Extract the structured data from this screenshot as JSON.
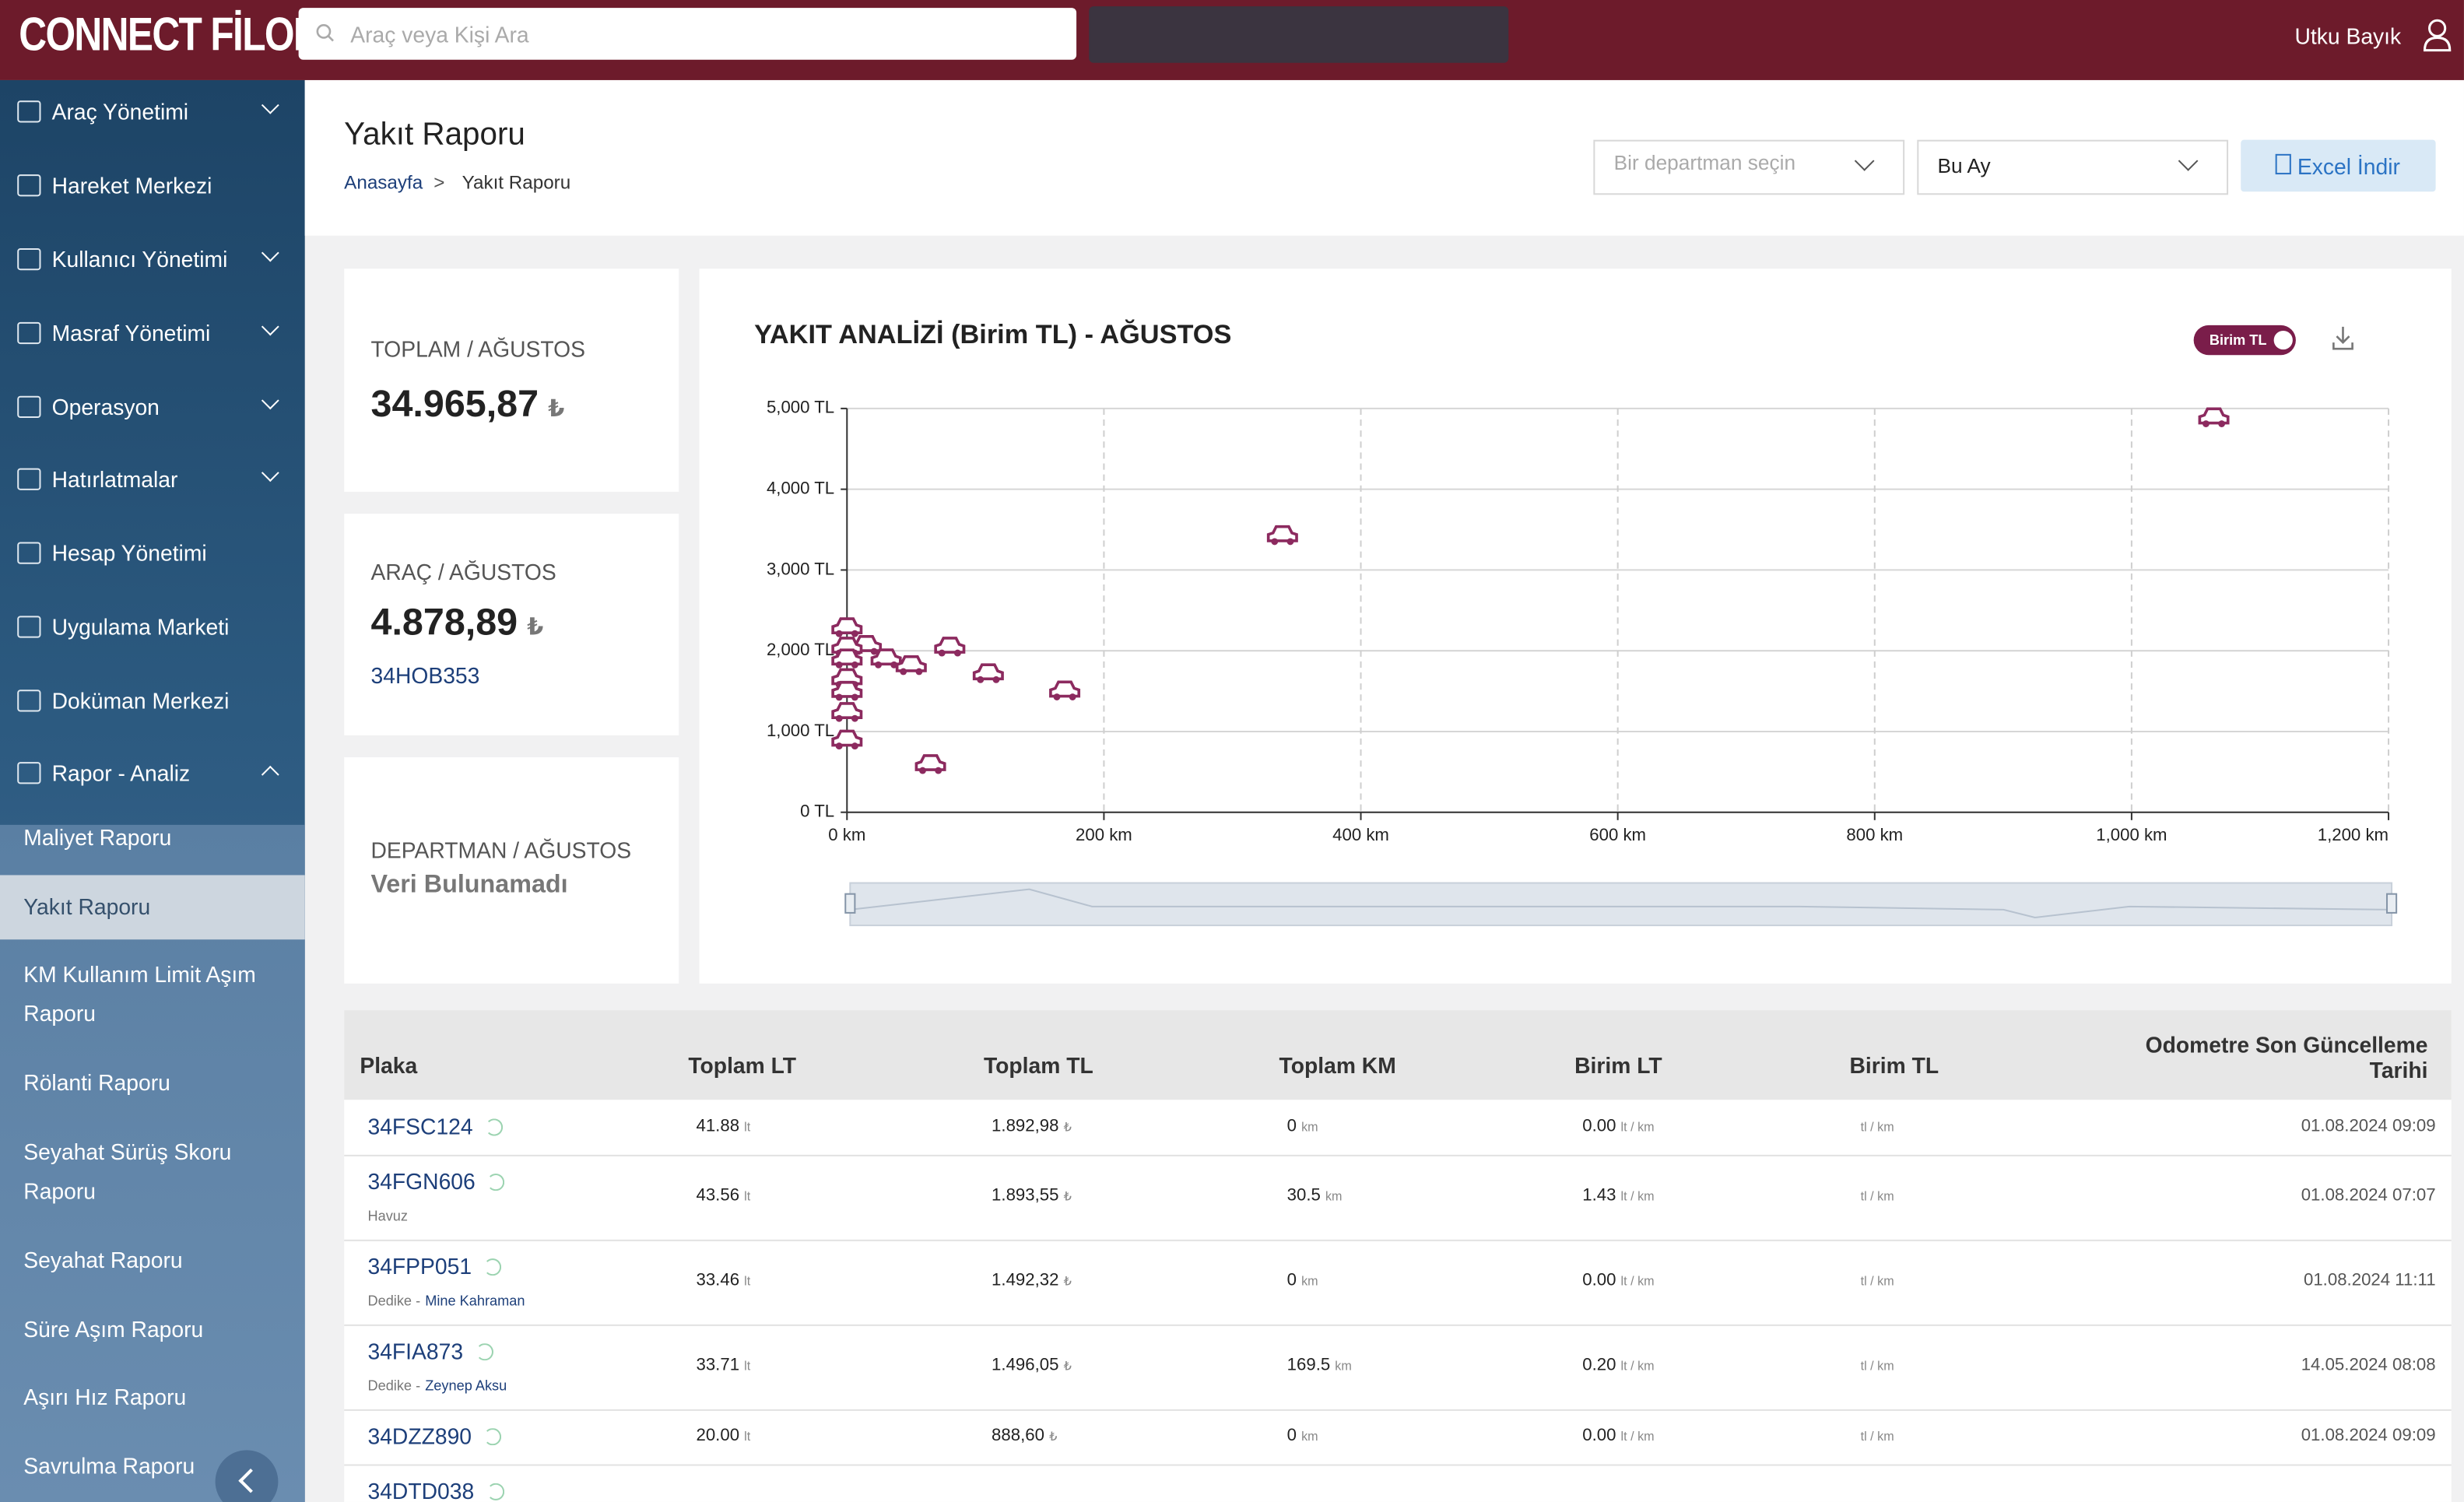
{
  "header": {
    "logo": "CONNECT FİLOM",
    "search_placeholder": "Araç veya Kişi Ara",
    "user": "Utku Bayık"
  },
  "sidebar": {
    "items": [
      "Araç Yönetimi",
      "Hareket Merkezi",
      "Kullanıcı Yönetimi",
      "Masraf Yönetimi",
      "Operasyon",
      "Hatırlatmalar",
      "Hesap Yönetimi",
      "Uygulama Marketi",
      "Doküman Merkezi",
      "Rapor - Analiz"
    ],
    "sub_items": [
      "Maliyet Raporu",
      "Yakıt Raporu",
      "KM Kullanım Limit Aşım Raporu",
      "Rölanti Raporu",
      "Seyahat Sürüş Skoru Raporu",
      "Seyahat Raporu",
      "Süre Aşım Raporu",
      "Aşırı Hız Raporu",
      "Savrulma Raporu"
    ]
  },
  "page": {
    "title": "Yakıt Raporu",
    "breadcrumb": [
      "Anasayfa",
      ">",
      "Yakıt Raporu"
    ],
    "department_placeholder": "Bir departman seçin",
    "period": "Bu Ay",
    "excel_button": "Excel İndir"
  },
  "cards": [
    {
      "label": "TOPLAM / AĞUSTOS",
      "value": "34.965,87",
      "currency": "₺"
    },
    {
      "label": "ARAÇ / AĞUSTOS",
      "value": "4.878,89",
      "currency": "₺",
      "plate": "34HOB353"
    },
    {
      "label": "DEPARTMAN / AĞUSTOS",
      "value": "Veri Bulunamadı"
    }
  ],
  "chart_data": {
    "type": "scatter",
    "title": "YAKIT ANALİZİ (Birim TL) - AĞUSTOS",
    "toggle": "Birim TL",
    "color": "#8c2a5f",
    "grid": true,
    "x": [
      0,
      15,
      0,
      30.5,
      0,
      50,
      80,
      110,
      169.5,
      0,
      0,
      0,
      0,
      65,
      339,
      1064
    ],
    "values": [
      2280,
      2060,
      2040,
      1893.55,
      1892.98,
      1810,
      2040,
      1710,
      1496.05,
      1650,
      1492.32,
      1230,
      888.6,
      585,
      3420,
      4878.89
    ],
    "xlim": [
      0,
      1200
    ],
    "ylim": [
      0,
      5000
    ],
    "xticks": [
      {
        "value": 0,
        "label": "0 km"
      },
      {
        "value": 200,
        "label": "200 km"
      },
      {
        "value": 400,
        "label": "400 km"
      },
      {
        "value": 600,
        "label": "600 km"
      },
      {
        "value": 800,
        "label": "800 km"
      },
      {
        "value": 1000,
        "label": "1,000 km"
      },
      {
        "value": 1200,
        "label": "1,200 km"
      }
    ],
    "yticks": [
      {
        "value": 0,
        "label": "0 TL"
      },
      {
        "value": 1000,
        "label": "1,000 TL"
      },
      {
        "value": 2000,
        "label": "2,000 TL"
      },
      {
        "value": 3000,
        "label": "3,000 TL"
      },
      {
        "value": 4000,
        "label": "4,000 TL"
      },
      {
        "value": 5000,
        "label": "5,000 TL"
      }
    ]
  },
  "table": {
    "columns": [
      "Plaka",
      "Toplam LT",
      "Toplam TL",
      "Toplam KM",
      "Birim LT",
      "Birim TL",
      "Odometre Son Güncelleme Tarihi"
    ],
    "units": {
      "lt": "lt",
      "tl": "₺",
      "km": "km",
      "lt_km": "lt / km",
      "tl_km": "tl / km"
    },
    "rows": [
      {
        "plate": "34FSC124",
        "lt": "41.88",
        "tl": "1.892,98",
        "km": "0",
        "birim_lt": "0.00",
        "date": "01.08.2024 09:09"
      },
      {
        "plate": "34FGN606",
        "assignment": "Havuz",
        "lt": "43.56",
        "tl": "1.893,55",
        "km": "30.5",
        "birim_lt": "1.43",
        "date": "01.08.2024 07:07"
      },
      {
        "plate": "34FPP051",
        "assignment": "Dedike -",
        "driver": "Mine Kahraman",
        "lt": "33.46",
        "tl": "1.492,32",
        "km": "0",
        "birim_lt": "0.00",
        "date": "01.08.2024 11:11"
      },
      {
        "plate": "34FIA873",
        "assignment": "Dedike -",
        "driver": "Zeynep Aksu",
        "lt": "33.71",
        "tl": "1.496,05",
        "km": "169.5",
        "birim_lt": "0.20",
        "date": "14.05.2024 08:08"
      },
      {
        "plate": "34DZZ890",
        "lt": "20.00",
        "tl": "888,60",
        "km": "0",
        "birim_lt": "0.00",
        "date": "01.08.2024 09:09"
      },
      {
        "plate": "34DTD038"
      }
    ]
  }
}
